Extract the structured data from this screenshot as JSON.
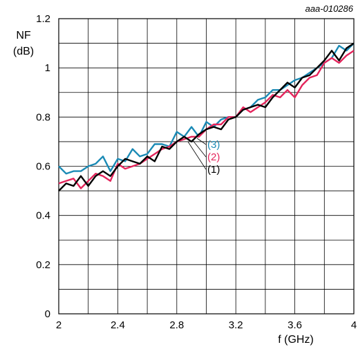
{
  "figure_id": "aaa-010286",
  "chart_data": {
    "type": "line",
    "xlabel": "f (GHz)",
    "ylabel_line1": "NF",
    "ylabel_line2": "(dB)",
    "xlim": [
      2,
      4
    ],
    "ylim": [
      0,
      1.2
    ],
    "x_ticks": [
      2,
      2.4,
      2.8,
      3.2,
      3.6,
      4
    ],
    "x_tick_labels": [
      "2",
      "2.4",
      "2.8",
      "3.2",
      "3.6",
      "4"
    ],
    "y_ticks": [
      0,
      0.2,
      0.4,
      0.6,
      0.8,
      1,
      1.2
    ],
    "y_tick_labels": [
      "0",
      "0.2",
      "0.4",
      "0.6",
      "0.8",
      "1",
      "1.2"
    ],
    "grid": true,
    "series": [
      {
        "name": "(1)",
        "color": "#000000",
        "x": [
          2.0,
          2.05,
          2.1,
          2.15,
          2.2,
          2.25,
          2.3,
          2.35,
          2.4,
          2.45,
          2.5,
          2.55,
          2.6,
          2.65,
          2.7,
          2.75,
          2.8,
          2.85,
          2.9,
          2.95,
          3.0,
          3.05,
          3.1,
          3.15,
          3.2,
          3.25,
          3.3,
          3.35,
          3.4,
          3.45,
          3.5,
          3.55,
          3.6,
          3.65,
          3.7,
          3.75,
          3.8,
          3.85,
          3.9,
          3.95,
          4.0
        ],
        "y": [
          0.5,
          0.53,
          0.52,
          0.56,
          0.52,
          0.56,
          0.58,
          0.56,
          0.6,
          0.63,
          0.62,
          0.61,
          0.64,
          0.62,
          0.68,
          0.67,
          0.7,
          0.72,
          0.7,
          0.73,
          0.75,
          0.76,
          0.75,
          0.79,
          0.8,
          0.83,
          0.84,
          0.85,
          0.84,
          0.88,
          0.91,
          0.94,
          0.92,
          0.96,
          0.97,
          1.0,
          1.03,
          1.07,
          1.03,
          1.08,
          1.1
        ]
      },
      {
        "name": "(2)",
        "color": "#e4245b",
        "x": [
          2.0,
          2.05,
          2.1,
          2.15,
          2.2,
          2.25,
          2.3,
          2.35,
          2.4,
          2.45,
          2.5,
          2.55,
          2.6,
          2.65,
          2.7,
          2.75,
          2.8,
          2.85,
          2.9,
          2.95,
          3.0,
          3.05,
          3.1,
          3.15,
          3.2,
          3.25,
          3.3,
          3.35,
          3.4,
          3.45,
          3.5,
          3.55,
          3.6,
          3.65,
          3.7,
          3.75,
          3.8,
          3.85,
          3.9,
          3.95,
          4.0
        ],
        "y": [
          0.53,
          0.54,
          0.55,
          0.51,
          0.54,
          0.57,
          0.56,
          0.54,
          0.61,
          0.59,
          0.6,
          0.61,
          0.63,
          0.65,
          0.67,
          0.68,
          0.7,
          0.71,
          0.72,
          0.72,
          0.75,
          0.77,
          0.77,
          0.8,
          0.8,
          0.84,
          0.82,
          0.84,
          0.86,
          0.89,
          0.88,
          0.91,
          0.88,
          0.93,
          0.96,
          0.97,
          1.02,
          1.04,
          1.02,
          1.05,
          1.07
        ]
      },
      {
        "name": "(3)",
        "color": "#1a8ab5",
        "x": [
          2.0,
          2.05,
          2.1,
          2.15,
          2.2,
          2.25,
          2.3,
          2.35,
          2.4,
          2.45,
          2.5,
          2.55,
          2.6,
          2.65,
          2.7,
          2.75,
          2.8,
          2.85,
          2.9,
          2.95,
          3.0,
          3.05,
          3.1,
          3.15,
          3.2,
          3.25,
          3.3,
          3.35,
          3.4,
          3.45,
          3.5,
          3.55,
          3.6,
          3.65,
          3.7,
          3.75,
          3.8,
          3.85,
          3.9,
          3.95,
          4.0
        ],
        "y": [
          0.6,
          0.57,
          0.58,
          0.58,
          0.6,
          0.61,
          0.64,
          0.58,
          0.63,
          0.62,
          0.67,
          0.64,
          0.65,
          0.69,
          0.69,
          0.68,
          0.74,
          0.72,
          0.76,
          0.72,
          0.78,
          0.76,
          0.79,
          0.8,
          0.8,
          0.83,
          0.84,
          0.87,
          0.88,
          0.91,
          0.91,
          0.93,
          0.95,
          0.96,
          0.98,
          1.0,
          1.02,
          1.04,
          1.09,
          1.07,
          1.1
        ]
      }
    ]
  }
}
